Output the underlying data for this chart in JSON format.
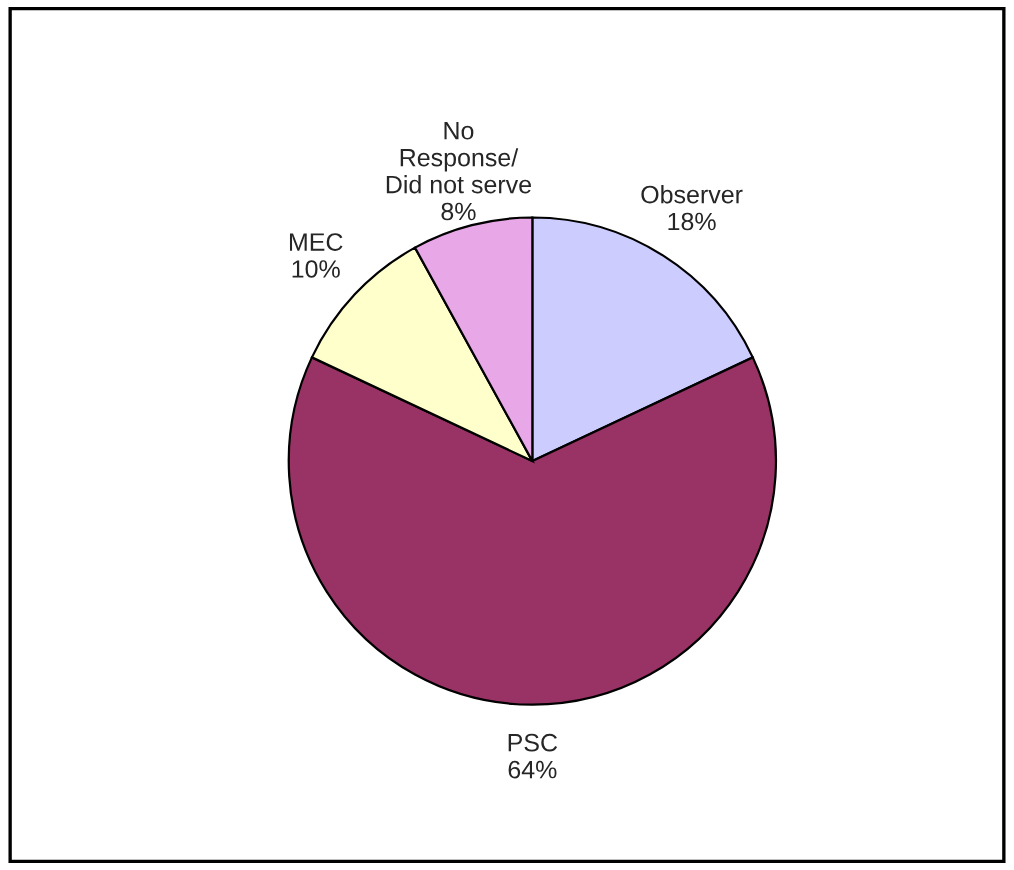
{
  "chart_data": {
    "type": "pie",
    "categories": [
      "Observer",
      "PSC",
      "MEC",
      "No\nResponse/\nDid not serve"
    ],
    "values": [
      18,
      64,
      10,
      8
    ],
    "colors": [
      "#ccccff",
      "#993366",
      "#ffffcc",
      "#e8a8e8"
    ],
    "value_labels": [
      "18%",
      "64%",
      "10%",
      "8%"
    ],
    "legend": false
  }
}
